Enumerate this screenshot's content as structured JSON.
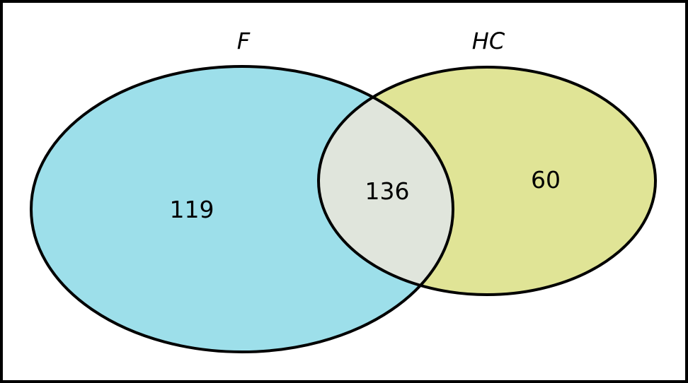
{
  "universe": {
    "border_color": "#000000"
  },
  "sets": [
    {
      "id": "F",
      "label": "F",
      "color": "#9ddfea"
    },
    {
      "id": "HC",
      "label": "HC",
      "color": "#e0e496"
    }
  ],
  "regions": {
    "only_F": "119",
    "intersection": "136",
    "only_HC": "60"
  },
  "intersection_color": "#e0e5dc",
  "outline_color": "#000000"
}
